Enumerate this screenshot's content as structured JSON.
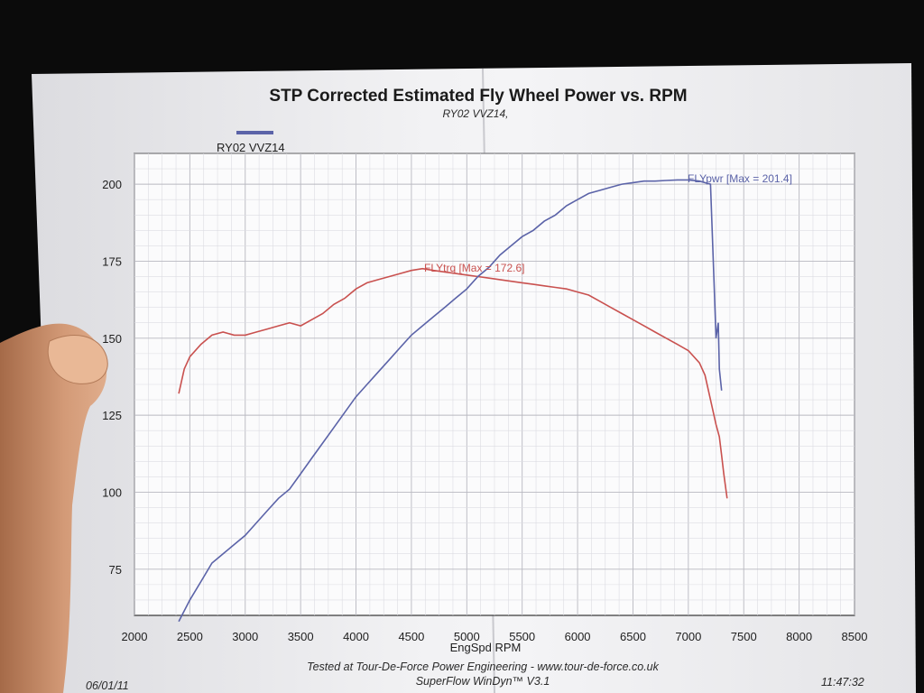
{
  "chart_data": {
    "type": "line",
    "title": "STP Corrected Estimated Fly Wheel Power vs. RPM",
    "subtitle": "RY02 VVZ14,",
    "xlabel": "EngSpd RPM",
    "ylabel": "",
    "xlim": [
      2000,
      8500
    ],
    "ylim": [
      60,
      210
    ],
    "x_ticks": [
      2000,
      2500,
      3000,
      3500,
      4000,
      4500,
      5000,
      5500,
      6000,
      6500,
      7000,
      7500,
      8000,
      8500
    ],
    "y_ticks": [
      75,
      100,
      125,
      150,
      175,
      200
    ],
    "grid": true,
    "legend": {
      "position": "top-left",
      "entries": [
        "RY02 VVZ14"
      ]
    },
    "series": [
      {
        "name": "FLYpwr",
        "color": "#5b63a8",
        "annotation": "FLYpwr [Max = 201.4]",
        "points": [
          [
            2400,
            58
          ],
          [
            2500,
            65
          ],
          [
            2600,
            71
          ],
          [
            2700,
            77
          ],
          [
            2800,
            80
          ],
          [
            2900,
            83
          ],
          [
            3000,
            86
          ],
          [
            3100,
            90
          ],
          [
            3200,
            94
          ],
          [
            3300,
            98
          ],
          [
            3400,
            101
          ],
          [
            3500,
            106
          ],
          [
            3600,
            111
          ],
          [
            3700,
            116
          ],
          [
            3800,
            121
          ],
          [
            3900,
            126
          ],
          [
            4000,
            131
          ],
          [
            4100,
            135
          ],
          [
            4200,
            139
          ],
          [
            4300,
            143
          ],
          [
            4400,
            147
          ],
          [
            4500,
            151
          ],
          [
            4600,
            154
          ],
          [
            4700,
            157
          ],
          [
            4800,
            160
          ],
          [
            4900,
            163
          ],
          [
            5000,
            166
          ],
          [
            5100,
            170
          ],
          [
            5200,
            173
          ],
          [
            5300,
            177
          ],
          [
            5400,
            180
          ],
          [
            5500,
            183
          ],
          [
            5600,
            185
          ],
          [
            5700,
            188
          ],
          [
            5800,
            190
          ],
          [
            5900,
            193
          ],
          [
            6000,
            195
          ],
          [
            6100,
            197
          ],
          [
            6200,
            198
          ],
          [
            6300,
            199
          ],
          [
            6400,
            200
          ],
          [
            6500,
            200.5
          ],
          [
            6600,
            201
          ],
          [
            6700,
            201
          ],
          [
            6800,
            201.2
          ],
          [
            6900,
            201.4
          ],
          [
            7000,
            201.4
          ],
          [
            7100,
            201
          ],
          [
            7200,
            200
          ],
          [
            7230,
            170
          ],
          [
            7250,
            150
          ],
          [
            7270,
            155
          ],
          [
            7280,
            140
          ],
          [
            7300,
            133
          ]
        ]
      },
      {
        "name": "FLYtrq",
        "color": "#c9514f",
        "annotation": "FLYtrq [Max = 172.6]",
        "points": [
          [
            2400,
            132
          ],
          [
            2450,
            140
          ],
          [
            2500,
            144
          ],
          [
            2600,
            148
          ],
          [
            2700,
            151
          ],
          [
            2800,
            152
          ],
          [
            2900,
            151
          ],
          [
            3000,
            151
          ],
          [
            3100,
            152
          ],
          [
            3200,
            153
          ],
          [
            3300,
            154
          ],
          [
            3400,
            155
          ],
          [
            3500,
            154
          ],
          [
            3600,
            156
          ],
          [
            3700,
            158
          ],
          [
            3800,
            161
          ],
          [
            3900,
            163
          ],
          [
            4000,
            166
          ],
          [
            4100,
            168
          ],
          [
            4200,
            169
          ],
          [
            4300,
            170
          ],
          [
            4400,
            171
          ],
          [
            4500,
            172
          ],
          [
            4600,
            172.6
          ],
          [
            4700,
            172
          ],
          [
            4800,
            171.5
          ],
          [
            4900,
            171
          ],
          [
            5000,
            170.5
          ],
          [
            5100,
            170
          ],
          [
            5200,
            169.5
          ],
          [
            5300,
            169
          ],
          [
            5400,
            168.5
          ],
          [
            5500,
            168
          ],
          [
            5600,
            167.5
          ],
          [
            5700,
            167
          ],
          [
            5800,
            166.5
          ],
          [
            5900,
            166
          ],
          [
            6000,
            165
          ],
          [
            6100,
            164
          ],
          [
            6200,
            162
          ],
          [
            6300,
            160
          ],
          [
            6400,
            158
          ],
          [
            6500,
            156
          ],
          [
            6600,
            154
          ],
          [
            6700,
            152
          ],
          [
            6800,
            150
          ],
          [
            6900,
            148
          ],
          [
            7000,
            146
          ],
          [
            7100,
            142
          ],
          [
            7150,
            138
          ],
          [
            7200,
            130
          ],
          [
            7250,
            122
          ],
          [
            7280,
            118
          ],
          [
            7300,
            112
          ],
          [
            7320,
            106
          ],
          [
            7350,
            98
          ]
        ]
      }
    ]
  },
  "footer": {
    "line1": "Tested at Tour-De-Force Power Engineering - www.tour-de-force.co.uk",
    "line2": "SuperFlow WinDyn™  V3.1",
    "date": "06/01/11",
    "time": "11:47:32"
  }
}
